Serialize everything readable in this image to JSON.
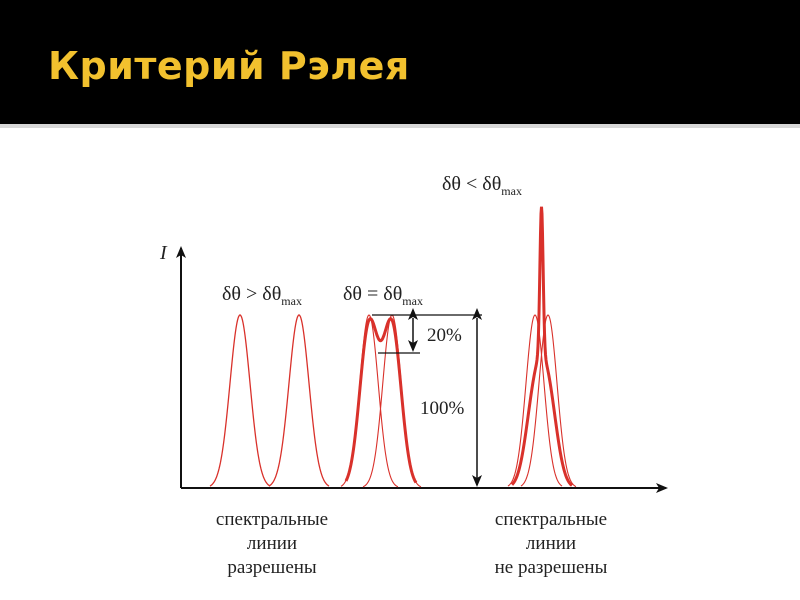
{
  "slide": {
    "title": "Критерий Рэлея",
    "colors": {
      "title": "#f2c12e",
      "curve": "#d9312b",
      "header_bg": "#000000"
    }
  },
  "diagram": {
    "axis_label": "I",
    "conditions": {
      "greater": {
        "base": "δθ > δθ",
        "sub": "max"
      },
      "equal": {
        "base": "δθ = δθ",
        "sub": "max"
      },
      "less": {
        "base": "δθ < δθ",
        "sub": "max"
      }
    },
    "dip_label": "20%",
    "full_label": "100%",
    "captions": {
      "resolved": [
        "спектральные",
        "линии",
        "разрешены"
      ],
      "unresolved": [
        "спектральные",
        "линии",
        "не разрешены"
      ]
    }
  }
}
